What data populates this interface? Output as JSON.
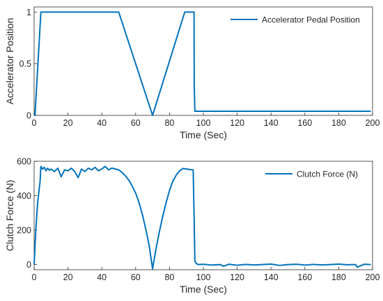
{
  "colors": {
    "series": "#0072BD",
    "axes": "#262626"
  },
  "chart_data": [
    {
      "type": "line",
      "xlabel": "Time (Sec)",
      "ylabel": "Accelerator Position",
      "xlim": [
        0,
        200
      ],
      "ylim": [
        0,
        1.05
      ],
      "xticks": [
        "0",
        "20",
        "40",
        "60",
        "80",
        "100",
        "120",
        "140",
        "160",
        "180",
        "200"
      ],
      "yticks": [
        "0",
        "0.5",
        "1"
      ],
      "grid": false,
      "legend": "top-right",
      "series": [
        {
          "name": "Accelerator Pedal Position",
          "x": [
            0,
            0.5,
            4,
            50,
            70,
            89,
            94.5,
            94.6,
            95,
            199
          ],
          "y": [
            0,
            0,
            1,
            1,
            0,
            1,
            1,
            0.3,
            0.04,
            0.04
          ]
        }
      ]
    },
    {
      "type": "line",
      "xlabel": "Time (Sec)",
      "ylabel": "Clutch Force (N)",
      "xlim": [
        0,
        200
      ],
      "ylim": [
        -30,
        600
      ],
      "xticks": [
        "0",
        "20",
        "40",
        "60",
        "80",
        "100",
        "120",
        "140",
        "160",
        "180",
        "200"
      ],
      "yticks": [
        "0",
        "200",
        "400",
        "600"
      ],
      "grid": false,
      "legend": "top-right",
      "series": [
        {
          "name": "Clutch Force (N)",
          "x": [
            0,
            1,
            2,
            3,
            3.5,
            4,
            5,
            6,
            7,
            8,
            9,
            10,
            12,
            14,
            16,
            18,
            20,
            22,
            24,
            26,
            28,
            30,
            32,
            34,
            36,
            38,
            40,
            42,
            44,
            46,
            48,
            50,
            52,
            54,
            56,
            58,
            60,
            62,
            64,
            66,
            68,
            70,
            72,
            74,
            76,
            78,
            80,
            82,
            84,
            86,
            88,
            90,
            92,
            94,
            94.5,
            95,
            96,
            97,
            100,
            105,
            110,
            112,
            115,
            120,
            125,
            130,
            135,
            140,
            145,
            150,
            155,
            160,
            165,
            170,
            175,
            180,
            185,
            190,
            191,
            195,
            199
          ],
          "y": [
            0,
            200,
            350,
            440,
            480,
            570,
            555,
            565,
            545,
            560,
            548,
            555,
            540,
            560,
            510,
            550,
            545,
            560,
            540,
            505,
            555,
            540,
            560,
            550,
            565,
            545,
            555,
            570,
            550,
            560,
            555,
            550,
            535,
            515,
            490,
            455,
            415,
            360,
            290,
            205,
            110,
            -25,
            90,
            190,
            280,
            360,
            430,
            485,
            520,
            545,
            558,
            555,
            552,
            550,
            300,
            20,
            5,
            0,
            2,
            -3,
            0,
            -10,
            2,
            -4,
            1,
            -2,
            0,
            3,
            -5,
            0,
            2,
            -3,
            1,
            -2,
            0,
            3,
            -1,
            0,
            -15,
            2,
            0
          ]
        }
      ]
    }
  ]
}
